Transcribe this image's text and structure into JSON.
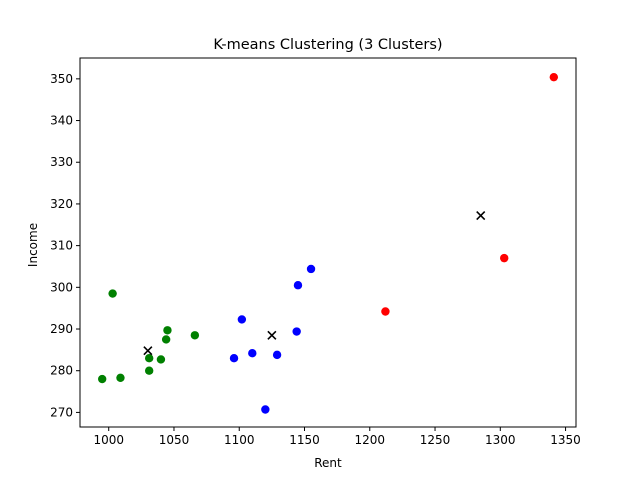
{
  "chart_data": {
    "type": "scatter",
    "title": "K-means Clustering (3 Clusters)",
    "xlabel": "Rent",
    "ylabel": "Income",
    "xlim": [
      978,
      1358
    ],
    "ylim": [
      266.5,
      355
    ],
    "xticks": [
      1000,
      1050,
      1100,
      1150,
      1200,
      1250,
      1300,
      1350
    ],
    "yticks": [
      270,
      280,
      290,
      300,
      310,
      320,
      330,
      340,
      350
    ],
    "grid": false,
    "legend": "none",
    "series": [
      {
        "color": "#008000",
        "marker": "circle",
        "points": [
          [
            995,
            278.0
          ],
          [
            1009,
            278.3
          ],
          [
            1003,
            298.5
          ],
          [
            1031,
            283.0
          ],
          [
            1031,
            280.0
          ],
          [
            1040,
            282.7
          ],
          [
            1044,
            287.5
          ],
          [
            1045,
            289.7
          ],
          [
            1066,
            288.5
          ]
        ]
      },
      {
        "color": "#0000ff",
        "marker": "circle",
        "points": [
          [
            1096,
            283.0
          ],
          [
            1102,
            292.3
          ],
          [
            1110,
            284.2
          ],
          [
            1120,
            270.7
          ],
          [
            1129,
            283.8
          ],
          [
            1144,
            289.4
          ],
          [
            1145,
            300.5
          ],
          [
            1155,
            304.4
          ]
        ]
      },
      {
        "color": "#ff0000",
        "marker": "circle",
        "points": [
          [
            1212,
            294.2
          ],
          [
            1303,
            307.0
          ],
          [
            1341,
            350.4
          ]
        ]
      }
    ],
    "centroids": {
      "color": "#000000",
      "marker": "x",
      "points": [
        [
          1030,
          284.8
        ],
        [
          1125,
          288.5
        ],
        [
          1285,
          317.2
        ]
      ]
    }
  }
}
